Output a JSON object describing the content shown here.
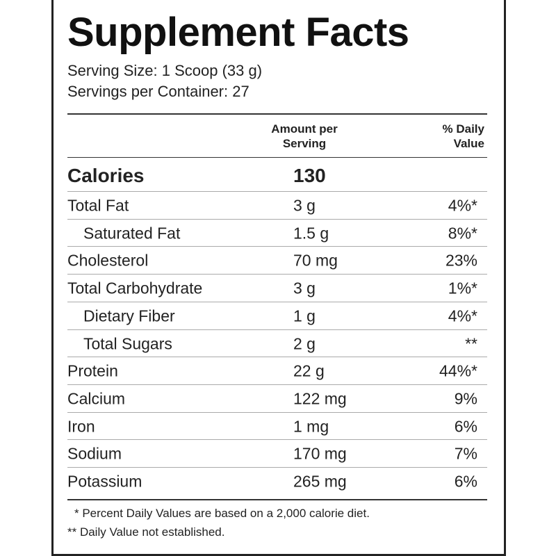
{
  "title": "Supplement Facts",
  "serving_size": "Serving Size: 1 Scoop (33 g)",
  "servings_per_container": "Servings per Container: 27",
  "header": {
    "amount": "Amount per Serving",
    "daily_value": "% Daily Value"
  },
  "calories": {
    "name": "Calories",
    "amount": "130"
  },
  "rows": [
    {
      "name": "Total Fat",
      "amount": "3 g",
      "daily_value": "4%*",
      "sub": [
        {
          "name": "Saturated Fat",
          "amount": "1.5 g",
          "daily_value": "8%*"
        }
      ]
    },
    {
      "name": "Cholesterol",
      "amount": "70 mg",
      "daily_value": "23%"
    },
    {
      "name": "Total Carbohydrate",
      "amount": "3 g",
      "daily_value": "1%*",
      "sub": [
        {
          "name": "Dietary Fiber",
          "amount": "1 g",
          "daily_value": "4%*"
        },
        {
          "name": "Total Sugars",
          "amount": "2 g",
          "daily_value": "**"
        }
      ]
    },
    {
      "name": "Protein",
      "amount": "22 g",
      "daily_value": "44%*"
    },
    {
      "name": "Calcium",
      "amount": "122 mg",
      "daily_value": "9%"
    },
    {
      "name": "Iron",
      "amount": "1 mg",
      "daily_value": "6%"
    },
    {
      "name": "Sodium",
      "amount": "170 mg",
      "daily_value": "7%"
    },
    {
      "name": "Potassium",
      "amount": "265 mg",
      "daily_value": "6%"
    }
  ],
  "footnotes": [
    "* Percent Daily Values are based on a 2,000 calorie diet.",
    "** Daily Value not established."
  ]
}
